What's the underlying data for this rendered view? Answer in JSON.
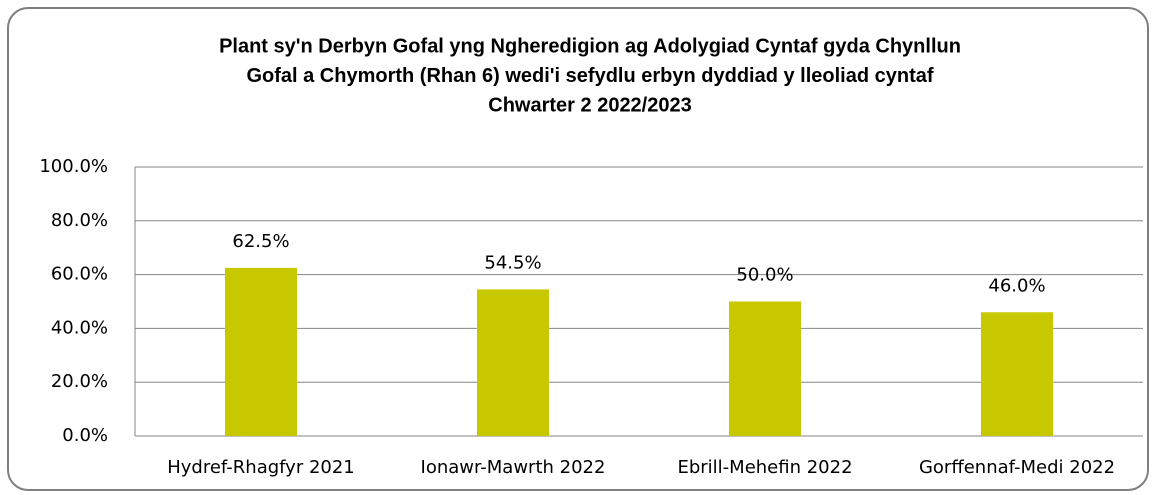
{
  "chart_data": {
    "type": "bar",
    "title": [
      "Plant sy'n Derbyn Gofal yng Ngheredigion ag Adolygiad Cyntaf gyda Chynllun",
      "Gofal a Chymorth (Rhan 6) wedi'i sefydlu erbyn dyddiad y lleoliad cyntaf",
      "Chwarter 2  2022/2023"
    ],
    "categories": [
      "Hydref-Rhagfyr 2021",
      "Ionawr-Mawrth 2022",
      "Ebrill-Mehefin 2022",
      "Gorffennaf-Medi 2022"
    ],
    "values": [
      62.5,
      54.5,
      50.0,
      46.0
    ],
    "value_labels": [
      "62.5%",
      "54.5%",
      "50.0%",
      "46.0%"
    ],
    "color": "#c8c800",
    "ylim": [
      0,
      100
    ],
    "yticks": [
      {
        "value": 0,
        "label": "0.0%"
      },
      {
        "value": 20,
        "label": "20.0%"
      },
      {
        "value": 40,
        "label": "40.0%"
      },
      {
        "value": 60,
        "label": "60.0%"
      },
      {
        "value": 80,
        "label": "80.0%"
      },
      {
        "value": 100,
        "label": "100.0%"
      }
    ],
    "grid": true
  }
}
